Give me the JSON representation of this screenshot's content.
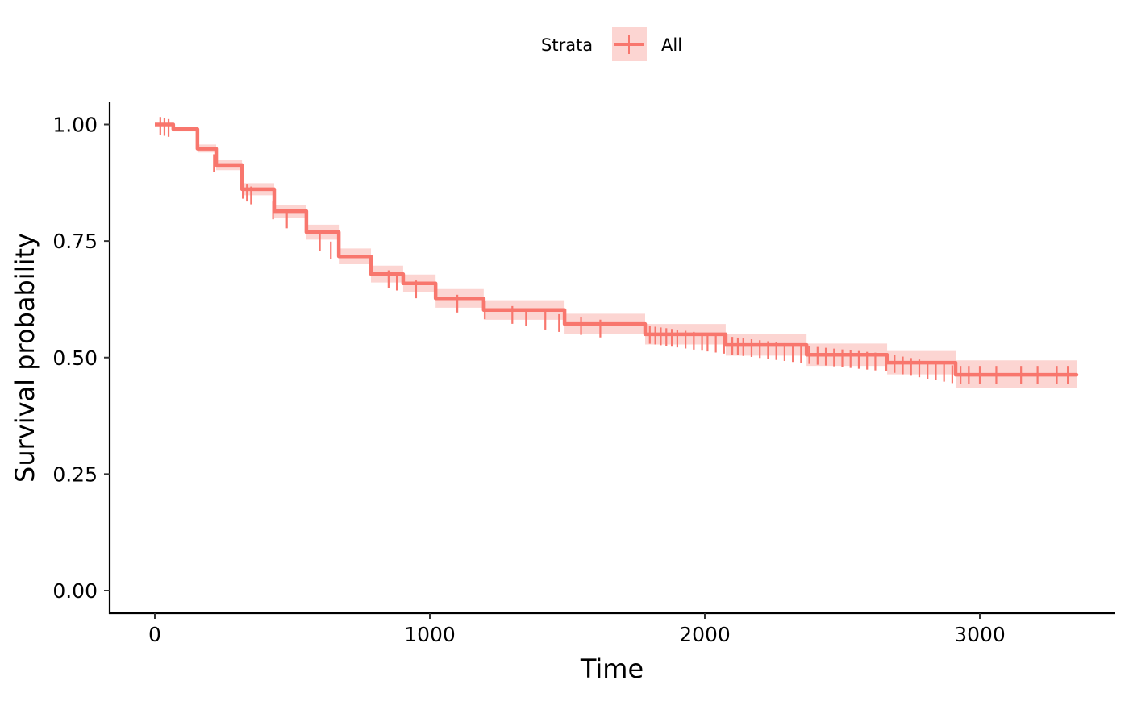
{
  "chart_data": {
    "type": "line",
    "xlabel": "Time",
    "ylabel": "Survival probability",
    "xlim": [
      -160,
      3510
    ],
    "ylim": [
      -0.048,
      1.048
    ],
    "x_ticks": [
      0,
      1000,
      2000,
      3000
    ],
    "x_tick_labels": [
      "0",
      "1000",
      "2000",
      "3000"
    ],
    "y_ticks": [
      0,
      0.25,
      0.5,
      0.75,
      1.0
    ],
    "y_tick_labels": [
      "0.00",
      "0.25",
      "0.50",
      "0.75",
      "1.00"
    ],
    "grid": false,
    "legend": {
      "title": "Strata",
      "position": "top",
      "entries": [
        "All"
      ]
    },
    "color": "#F8766D",
    "ci_color": "#FCD5D2",
    "series": [
      {
        "name": "All",
        "time": [
          0,
          67,
          155,
          223,
          317,
          434,
          551,
          669,
          786,
          903,
          1021,
          1196,
          1490,
          1783,
          2076,
          2370,
          2663,
          2912,
          3352
        ],
        "surv": [
          1.0,
          0.99,
          0.948,
          0.913,
          0.861,
          0.814,
          0.769,
          0.717,
          0.679,
          0.659,
          0.627,
          0.602,
          0.572,
          0.55,
          0.527,
          0.506,
          0.489,
          0.463,
          0.463
        ],
        "lower": [
          1.0,
          0.985,
          0.94,
          0.902,
          0.848,
          0.8,
          0.753,
          0.7,
          0.661,
          0.64,
          0.607,
          0.581,
          0.55,
          0.528,
          0.504,
          0.482,
          0.464,
          0.434,
          0.434
        ],
        "upper": [
          1.0,
          0.995,
          0.957,
          0.924,
          0.874,
          0.828,
          0.785,
          0.734,
          0.697,
          0.678,
          0.647,
          0.623,
          0.594,
          0.572,
          0.55,
          0.53,
          0.514,
          0.494,
          0.494
        ],
        "censor_times": [
          20,
          35,
          50,
          215,
          320,
          335,
          350,
          430,
          480,
          600,
          640,
          850,
          880,
          950,
          1100,
          1200,
          1300,
          1350,
          1420,
          1470,
          1550,
          1620,
          1800,
          1820,
          1840,
          1860,
          1880,
          1900,
          1930,
          1960,
          1990,
          2010,
          2040,
          2070,
          2100,
          2120,
          2140,
          2170,
          2200,
          2230,
          2260,
          2290,
          2320,
          2350,
          2380,
          2410,
          2440,
          2470,
          2500,
          2530,
          2560,
          2590,
          2620,
          2660,
          2690,
          2720,
          2750,
          2780,
          2810,
          2840,
          2870,
          2900,
          2930,
          2960,
          3000,
          3060,
          3150,
          3210,
          3280,
          3320
        ]
      }
    ]
  }
}
